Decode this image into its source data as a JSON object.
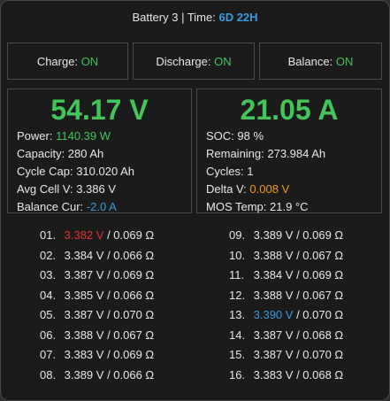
{
  "header": {
    "battery": "Battery 3",
    "separator": " | Time: ",
    "time": "6D 22H"
  },
  "toggles": [
    {
      "label": "Charge:",
      "value": "ON"
    },
    {
      "label": "Discharge:",
      "value": "ON"
    },
    {
      "label": "Balance:",
      "value": "ON"
    }
  ],
  "left": {
    "voltage": "54.17 V",
    "power_label": "Power:",
    "power_value": "1140.39 W",
    "capacity": "Capacity: 280 Ah",
    "cycle_cap": "Cycle Cap: 310.020 Ah",
    "avg_cell": "Avg Cell V: 3.386 V",
    "balance_label": "Balance Cur:",
    "balance_value": "-2.0 A"
  },
  "right": {
    "current": "21.05 A",
    "soc": "SOC: 98 %",
    "remaining": "Remaining: 273.984 Ah",
    "cycles": "Cycles: 1",
    "delta_label": "Delta V:",
    "delta_value": "0.008 V",
    "mos_temp": "MOS Temp: 21.9 °C"
  },
  "cells_left": [
    {
      "num": "01.",
      "voltage": "3.382 V",
      "resistance": " / 0.069 Ω"
    },
    {
      "num": "02.",
      "voltage": "3.384 V",
      "resistance": " / 0.066 Ω"
    },
    {
      "num": "03.",
      "voltage": "3.387 V",
      "resistance": " / 0.069 Ω"
    },
    {
      "num": "04.",
      "voltage": "3.385 V",
      "resistance": " / 0.066 Ω"
    },
    {
      "num": "05.",
      "voltage": "3.387 V",
      "resistance": " / 0.070 Ω"
    },
    {
      "num": "06.",
      "voltage": "3.388 V",
      "resistance": " / 0.067 Ω"
    },
    {
      "num": "07.",
      "voltage": "3.383 V",
      "resistance": " / 0.069 Ω"
    },
    {
      "num": "08.",
      "voltage": "3.389 V",
      "resistance": " / 0.066 Ω"
    }
  ],
  "cells_right": [
    {
      "num": "09.",
      "voltage": "3.389 V",
      "resistance": " / 0.069 Ω"
    },
    {
      "num": "10.",
      "voltage": "3.388 V",
      "resistance": " / 0.067 Ω"
    },
    {
      "num": "11.",
      "voltage": "3.384 V",
      "resistance": " / 0.069 Ω"
    },
    {
      "num": "12.",
      "voltage": "3.388 V",
      "resistance": " / 0.067 Ω"
    },
    {
      "num": "13.",
      "voltage": "3.390 V",
      "resistance": " / 0.070 Ω"
    },
    {
      "num": "14.",
      "voltage": "3.387 V",
      "resistance": " / 0.068 Ω"
    },
    {
      "num": "15.",
      "voltage": "3.387 V",
      "resistance": " / 0.070 Ω"
    },
    {
      "num": "16.",
      "voltage": "3.383 V",
      "resistance": " / 0.068 Ω"
    }
  ],
  "colors": {
    "green": "#43c55a",
    "blue": "#3a9bdc",
    "orange": "#f39c12",
    "red": "#e5312e"
  }
}
